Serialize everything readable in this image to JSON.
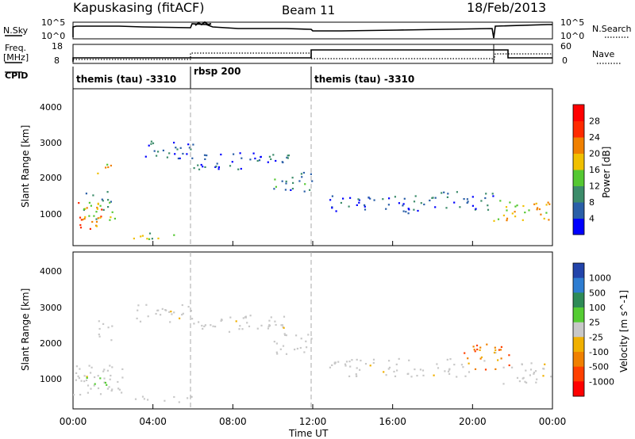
{
  "header": {
    "station": "Kapuskasing (fitACF)",
    "beam": "Beam 11",
    "date": "18/Feb/2013"
  },
  "summary_panels": {
    "nsky_label": "N.Sky",
    "nsky_ticks": [
      "10^5",
      "10^0"
    ],
    "nsearch_label": "N.Search",
    "nsearch_ticks": [
      "10^5",
      "10^0"
    ],
    "freq_label_1": "Freq.",
    "freq_label_2": "[MHz]",
    "freq_ticks": [
      "18",
      "8"
    ],
    "nave_label": "Nave",
    "nave_ticks": [
      "60",
      "0"
    ],
    "cpid_label": "CPID",
    "cpid_segments": [
      {
        "label": "themis (tau) -3310",
        "start": 0,
        "end": 6
      },
      {
        "label": "rbsp 200",
        "start": 6,
        "end": 12
      },
      {
        "label": "themis (tau) -3310",
        "start": 12,
        "end": 24
      }
    ]
  },
  "chart_data": [
    {
      "type": "heatmap",
      "panel": "power",
      "ylabel": "Slant Range [km]",
      "yticks": [
        "1000",
        "2000",
        "3000",
        "4000"
      ],
      "ylim": [
        200,
        4500
      ],
      "xlim": [
        0,
        24
      ],
      "colorbar_label": "Power [dB]",
      "colorbar_ticks": [
        "4",
        "8",
        "12",
        "16",
        "20",
        "24",
        "28"
      ],
      "colorbar_colors": [
        "#0000ff",
        "#2a5fa8",
        "#3c8c6a",
        "#55c832",
        "#f0c000",
        "#f08000",
        "#ff2a00",
        "#ff0000"
      ],
      "features": [
        {
          "t0": 0.0,
          "t1": 1.4,
          "r0": 600,
          "r1": 1500,
          "level": 22
        },
        {
          "t0": 0.5,
          "t1": 2.0,
          "r0": 1000,
          "r1": 1700,
          "level": 12
        },
        {
          "t0": 1.2,
          "t1": 2.0,
          "r0": 2100,
          "r1": 2500,
          "level": 18
        },
        {
          "t0": 0.3,
          "t1": 2.5,
          "r0": 900,
          "r1": 1100,
          "level": 14
        },
        {
          "t0": 2.6,
          "t1": 6.0,
          "r0": 400,
          "r1": 560,
          "level": 14
        },
        {
          "t0": 3.0,
          "t1": 6.0,
          "r0": 2600,
          "r1": 3100,
          "level": 6
        },
        {
          "t0": 6.0,
          "t1": 10.8,
          "r0": 2300,
          "r1": 2800,
          "level": 6
        },
        {
          "t0": 10.0,
          "t1": 12.0,
          "r0": 1700,
          "r1": 2300,
          "level": 8
        },
        {
          "t0": 12.8,
          "t1": 17.5,
          "r0": 1100,
          "r1": 1600,
          "level": 6
        },
        {
          "t0": 17.5,
          "t1": 21.0,
          "r0": 1200,
          "r1": 1700,
          "level": 6
        },
        {
          "t0": 21.0,
          "t1": 24.0,
          "r0": 900,
          "r1": 1500,
          "level": 18
        }
      ]
    },
    {
      "type": "heatmap",
      "panel": "velocity",
      "ylabel": "Slant Range [km]",
      "yticks": [
        "1000",
        "2000",
        "3000",
        "4000"
      ],
      "ylim": [
        200,
        4500
      ],
      "xlim": [
        0,
        24
      ],
      "xlabel": "Time UT",
      "xticks": [
        "00:00",
        "04:00",
        "08:00",
        "12:00",
        "16:00",
        "20:00",
        "00:00"
      ],
      "colorbar_label": "Velocity [m s^-1]",
      "colorbar_ticks": [
        "1000",
        "500",
        "100",
        "25",
        "-25",
        "-100",
        "-500",
        "-1000"
      ],
      "colorbar_colors": [
        "#2244aa",
        "#2e7dd1",
        "#2e8b57",
        "#55cc33",
        "#c8c8c8",
        "#f0b000",
        "#f08000",
        "#ff4000",
        "#ff0000"
      ],
      "features": [
        {
          "t0": 0.0,
          "t1": 2.6,
          "r0": 600,
          "r1": 1500,
          "level": "ground"
        },
        {
          "t0": 0.6,
          "t1": 2.2,
          "r0": 800,
          "r1": 1150,
          "level": "green"
        },
        {
          "t0": 1.2,
          "t1": 2.0,
          "r0": 2100,
          "r1": 2700,
          "level": "ground"
        },
        {
          "t0": 2.6,
          "t1": 6.0,
          "r0": 400,
          "r1": 560,
          "level": "ground"
        },
        {
          "t0": 3.0,
          "t1": 6.0,
          "r0": 2600,
          "r1": 3100,
          "level": "ground"
        },
        {
          "t0": 6.0,
          "t1": 10.8,
          "r0": 2300,
          "r1": 2800,
          "level": "ground"
        },
        {
          "t0": 10.0,
          "t1": 12.0,
          "r0": 1700,
          "r1": 2300,
          "level": "ground"
        },
        {
          "t0": 12.8,
          "t1": 20.0,
          "r0": 1100,
          "r1": 1600,
          "level": "ground"
        },
        {
          "t0": 19.5,
          "t1": 21.8,
          "r0": 1300,
          "r1": 2000,
          "level": "orange"
        },
        {
          "t0": 21.5,
          "t1": 24.0,
          "r0": 900,
          "r1": 1500,
          "level": "ground"
        }
      ]
    }
  ]
}
